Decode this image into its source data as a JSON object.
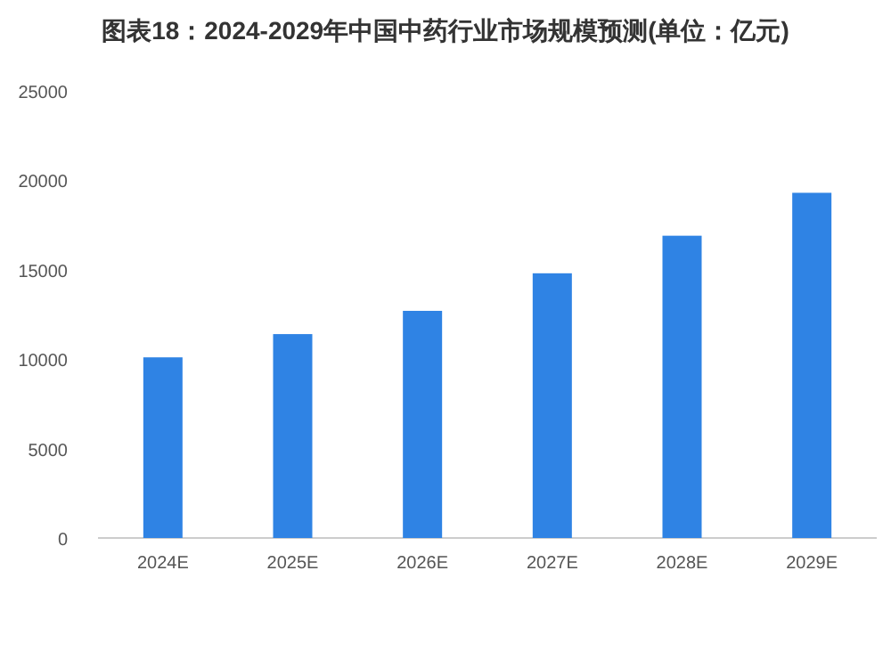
{
  "chart_data": {
    "type": "bar",
    "title": "图表18：2024-2029年中国中药行业市场规模预测(单位：亿元)",
    "categories": [
      "2024E",
      "2025E",
      "2026E",
      "2027E",
      "2028E",
      "2029E"
    ],
    "values": [
      10100,
      11400,
      12700,
      14800,
      16900,
      19300
    ],
    "color": "#2f83e4",
    "ylim": [
      0,
      25000
    ],
    "yticks": [
      0,
      5000,
      10000,
      15000,
      20000,
      25000
    ],
    "grid": false
  }
}
